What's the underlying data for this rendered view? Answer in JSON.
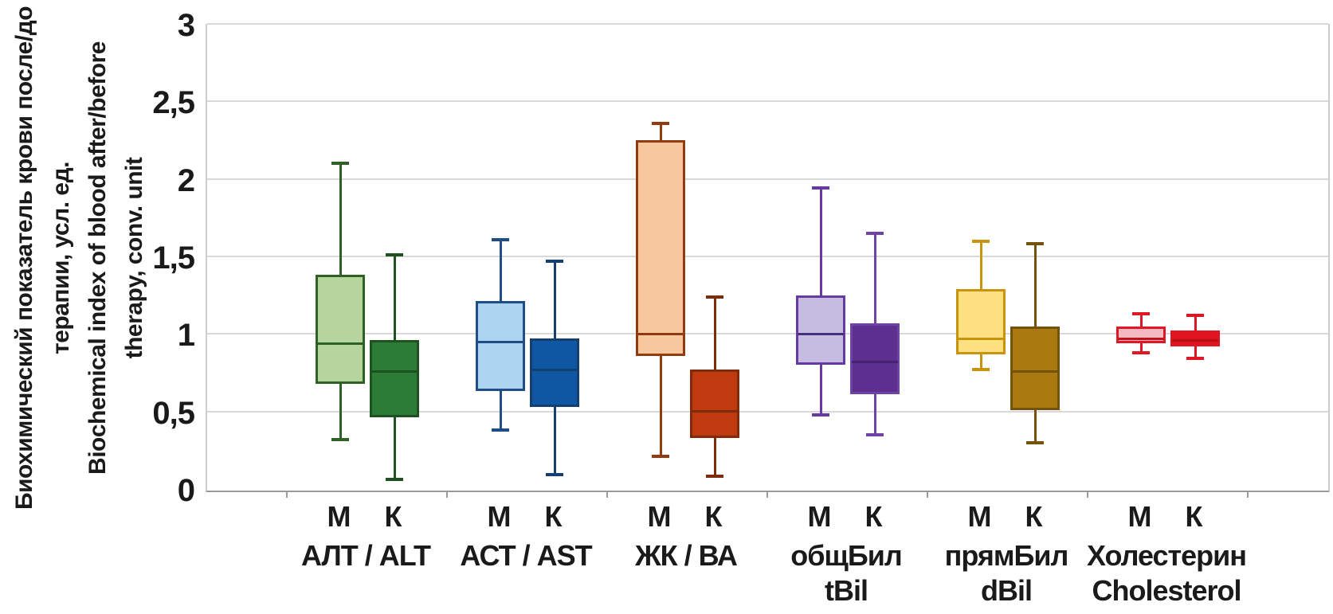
{
  "y_axis": {
    "title_lines": [
      "Биохимический показатель крови после/до",
      "терапии, усл. ед.",
      "Biochemical index of blood after/before",
      "therapy, conv. unit"
    ]
  },
  "chart_data": {
    "type": "boxplot",
    "title": "",
    "xlabel": "",
    "ylabel": "Биохимический показатель крови после/до терапии, усл. ед. / Biochemical index of blood after/before therapy, conv. unit",
    "ylim": [
      0,
      3
    ],
    "grid": true,
    "ytick_values": [
      0,
      0.5,
      1,
      1.5,
      2,
      2.5,
      3
    ],
    "ytick_labels": [
      "0",
      "0,5",
      "1",
      "1,5",
      "2",
      "2,5",
      "3"
    ],
    "series_sublabels": [
      "М",
      "К"
    ],
    "groups": [
      {
        "label_lines": [
          "АЛТ / ALT"
        ],
        "boxes": [
          {
            "sublabel": "М",
            "low": 0.32,
            "q1": 0.68,
            "median": 0.94,
            "q3": 1.38,
            "high": 2.1,
            "fill": "#b5d49e",
            "stroke": "#2f6127",
            "median_color": "#2f6127"
          },
          {
            "sublabel": "К",
            "low": 0.06,
            "q1": 0.46,
            "median": 0.76,
            "q3": 0.96,
            "high": 1.51,
            "fill": "#2c7b36",
            "stroke": "#1d5120",
            "median_color": "#1d5120"
          }
        ]
      },
      {
        "label_lines": [
          "АСТ / AST"
        ],
        "boxes": [
          {
            "sublabel": "М",
            "low": 0.38,
            "q1": 0.63,
            "median": 0.95,
            "q3": 1.21,
            "high": 1.61,
            "fill": "#acd3f0",
            "stroke": "#1f4e87",
            "median_color": "#1f4e87"
          },
          {
            "sublabel": "К",
            "low": 0.09,
            "q1": 0.53,
            "median": 0.77,
            "q3": 0.97,
            "high": 1.47,
            "fill": "#0f57a3",
            "stroke": "#143f70",
            "median_color": "#143f70"
          }
        ]
      },
      {
        "label_lines": [
          "ЖК / ВА"
        ],
        "boxes": [
          {
            "sublabel": "М",
            "low": 0.21,
            "q1": 0.86,
            "median": 1.0,
            "q3": 2.25,
            "high": 2.36,
            "fill": "#f7c79d",
            "stroke": "#903b10",
            "median_color": "#903b10"
          },
          {
            "sublabel": "К",
            "low": 0.08,
            "q1": 0.33,
            "median": 0.5,
            "q3": 0.77,
            "high": 1.24,
            "fill": "#c03a10",
            "stroke": "#7e2c0b",
            "median_color": "#7e2c0b"
          }
        ]
      },
      {
        "label_lines": [
          "общБил",
          "tBil"
        ],
        "boxes": [
          {
            "sublabel": "М",
            "low": 0.48,
            "q1": 0.8,
            "median": 1.0,
            "q3": 1.25,
            "high": 1.94,
            "fill": "#c4bde1",
            "stroke": "#6639a3",
            "median_color": "#4a2d7d"
          },
          {
            "sublabel": "К",
            "low": 0.35,
            "q1": 0.61,
            "median": 0.82,
            "q3": 1.07,
            "high": 1.65,
            "fill": "#5d3090",
            "stroke": "#6f42a8",
            "median_color": "#44226f"
          }
        ]
      },
      {
        "label_lines": [
          "прямБил",
          "dBil"
        ],
        "boxes": [
          {
            "sublabel": "М",
            "low": 0.77,
            "q1": 0.87,
            "median": 0.97,
            "q3": 1.29,
            "high": 1.6,
            "fill": "#fbdf80",
            "stroke": "#c8930d",
            "median_color": "#c8930d"
          },
          {
            "sublabel": "К",
            "low": 0.3,
            "q1": 0.51,
            "median": 0.76,
            "q3": 1.05,
            "high": 1.58,
            "fill": "#aa790f",
            "stroke": "#73520a",
            "median_color": "#73520a"
          }
        ]
      },
      {
        "label_lines": [
          "Холестерин",
          "Cholesterol"
        ],
        "boxes": [
          {
            "sublabel": "М",
            "low": 0.88,
            "q1": 0.94,
            "median": 0.97,
            "q3": 1.05,
            "high": 1.13,
            "fill": "#f4bac2",
            "stroke": "#e01826",
            "median_color": "#c4101c"
          },
          {
            "sublabel": "К",
            "low": 0.84,
            "q1": 0.92,
            "median": 0.96,
            "q3": 1.02,
            "high": 1.12,
            "fill": "#e0141f",
            "stroke": "#de1623",
            "median_color": "#b90f1b"
          }
        ]
      }
    ],
    "colors": {
      "gridline": "#d9d9d9",
      "axis": "#9b9b9b",
      "text": "#1a1a1a"
    }
  }
}
